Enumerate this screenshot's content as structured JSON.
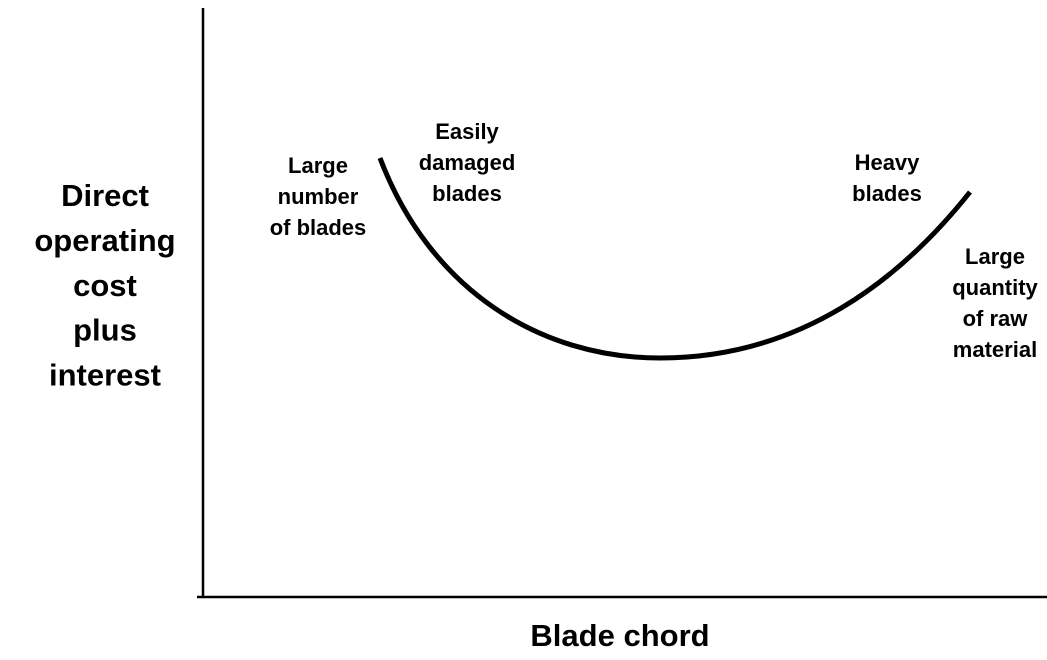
{
  "y_axis_label": [
    "Direct",
    "operating",
    "cost",
    "plus",
    "interest"
  ],
  "x_axis_label": "Blade chord",
  "annotations": [
    {
      "lines": [
        "Large",
        "number",
        "of blades"
      ]
    },
    {
      "lines": [
        "Easily",
        "damaged",
        "blades"
      ]
    },
    {
      "lines": [
        "Heavy",
        "blades"
      ]
    },
    {
      "lines": [
        "Large",
        "quantity",
        "of raw",
        "material"
      ]
    }
  ]
}
